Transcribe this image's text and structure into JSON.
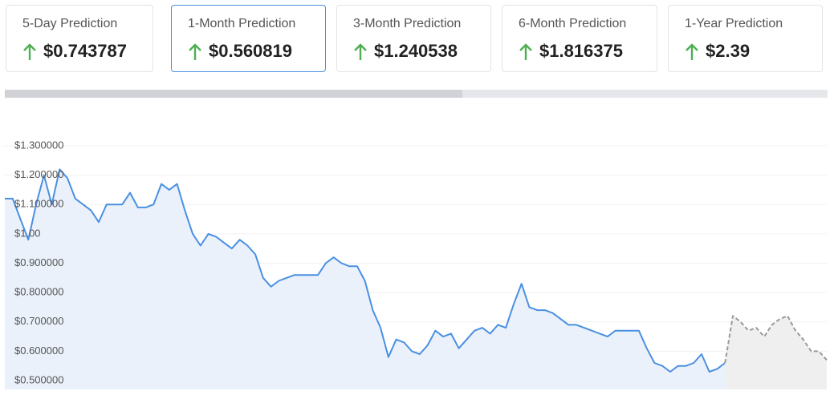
{
  "cards": [
    {
      "label": "5-Day Prediction",
      "value": "$0.743787"
    },
    {
      "label": "1-Month Prediction",
      "value": "$0.560819"
    },
    {
      "label": "3-Month Prediction",
      "value": "$1.240538"
    },
    {
      "label": "6-Month Prediction",
      "value": "$1.816375"
    },
    {
      "label": "1-Year Prediction",
      "value": "$2.39"
    }
  ],
  "chart_data": {
    "type": "line",
    "ylim": [
      0.47,
      1.33
    ],
    "yticks": [
      {
        "value": 1.3,
        "label": "$1.300000"
      },
      {
        "value": 1.2,
        "label": "$1.200000"
      },
      {
        "value": 1.1,
        "label": "$1.100000"
      },
      {
        "value": 1.0,
        "label": "$1.00"
      },
      {
        "value": 0.9,
        "label": "$0.900000"
      },
      {
        "value": 0.8,
        "label": "$0.800000"
      },
      {
        "value": 0.7,
        "label": "$0.700000"
      },
      {
        "value": 0.6,
        "label": "$0.600000"
      },
      {
        "value": 0.5,
        "label": "$0.500000"
      }
    ],
    "grid": true,
    "series": [
      {
        "color": "#4a90e2",
        "area": "#eaf1fb",
        "dashed": false,
        "values": [
          1.12,
          1.12,
          1.05,
          0.98,
          1.1,
          1.2,
          1.1,
          1.22,
          1.19,
          1.12,
          1.1,
          1.08,
          1.04,
          1.1,
          1.1,
          1.1,
          1.14,
          1.09,
          1.09,
          1.1,
          1.17,
          1.15,
          1.17,
          1.08,
          1.0,
          0.96,
          1.0,
          0.99,
          0.97,
          0.95,
          0.98,
          0.96,
          0.93,
          0.85,
          0.82,
          0.84,
          0.85,
          0.86,
          0.86,
          0.86,
          0.86,
          0.9,
          0.92,
          0.9,
          0.89,
          0.89,
          0.84,
          0.74,
          0.68,
          0.58,
          0.64,
          0.63,
          0.6,
          0.59,
          0.62,
          0.67,
          0.65,
          0.66,
          0.61,
          0.64,
          0.67,
          0.68,
          0.66,
          0.69,
          0.68,
          0.76,
          0.83,
          0.75,
          0.74,
          0.74,
          0.73,
          0.71,
          0.69,
          0.69,
          0.68,
          0.67,
          0.66,
          0.65,
          0.67,
          0.67,
          0.67,
          0.67,
          0.61,
          0.56,
          0.55,
          0.53,
          0.55,
          0.55,
          0.56,
          0.59,
          0.53,
          0.54,
          0.56,
          null,
          null,
          null,
          null,
          null,
          null,
          null,
          null,
          null,
          null,
          null,
          null,
          null
        ]
      },
      {
        "color": "#999999",
        "area": "#efefef",
        "dashed": true,
        "values": [
          null,
          null,
          null,
          null,
          null,
          null,
          null,
          null,
          null,
          null,
          null,
          null,
          null,
          null,
          null,
          null,
          null,
          null,
          null,
          null,
          null,
          null,
          null,
          null,
          null,
          null,
          null,
          null,
          null,
          null,
          null,
          null,
          null,
          null,
          null,
          null,
          null,
          null,
          null,
          null,
          null,
          null,
          null,
          null,
          null,
          null,
          null,
          null,
          null,
          null,
          null,
          null,
          null,
          null,
          null,
          null,
          null,
          null,
          null,
          null,
          null,
          null,
          null,
          null,
          null,
          null,
          null,
          null,
          null,
          null,
          null,
          null,
          null,
          null,
          null,
          null,
          null,
          null,
          null,
          null,
          null,
          null,
          null,
          null,
          null,
          null,
          null,
          null,
          null,
          null,
          null,
          null,
          0.56,
          0.72,
          0.7,
          0.67,
          0.68,
          0.65,
          0.69,
          0.71,
          0.72,
          0.67,
          0.64,
          0.6,
          0.6,
          0.57
        ]
      }
    ]
  }
}
